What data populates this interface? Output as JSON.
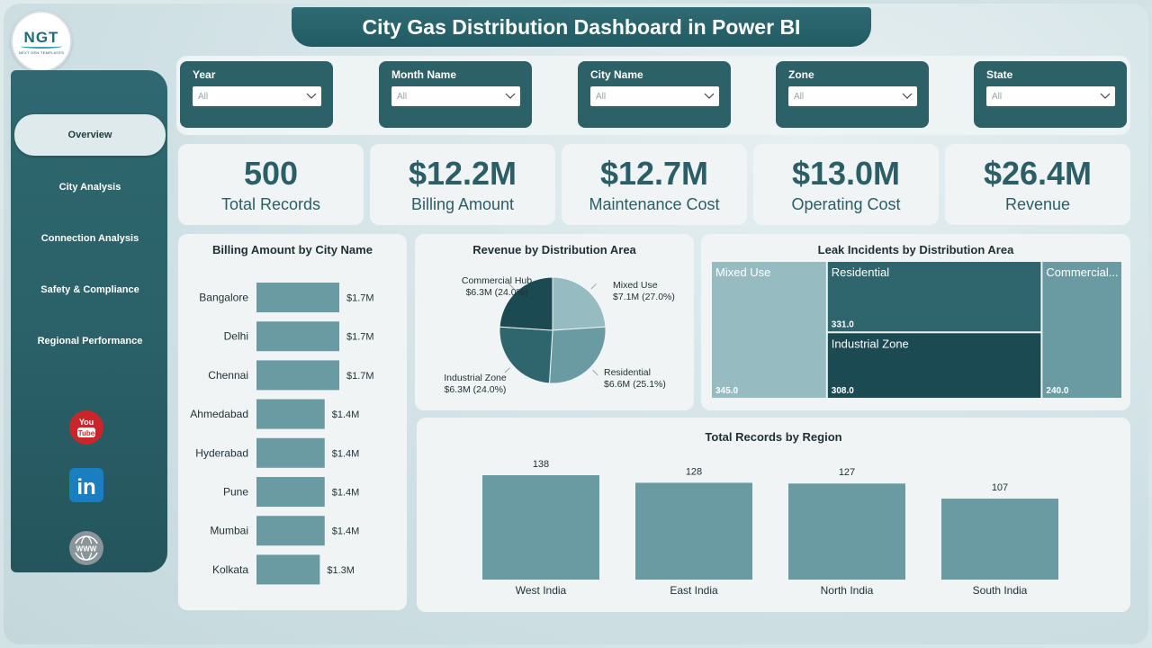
{
  "header": {
    "title": "City Gas Distribution Dashboard in Power BI"
  },
  "logo": {
    "mark": "NGT",
    "subtitle": "NEXT GEN TEMPLATES"
  },
  "sidebar": {
    "items": [
      {
        "label": "Overview",
        "active": true
      },
      {
        "label": "City Analysis"
      },
      {
        "label": "Connection Analysis"
      },
      {
        "label": "Safety & Compliance"
      },
      {
        "label": "Regional Performance"
      }
    ],
    "social": [
      {
        "icon": "youtube-icon",
        "text": "You Tube"
      },
      {
        "icon": "linkedin-icon",
        "text": "in"
      },
      {
        "icon": "www-icon",
        "text": "WWW"
      }
    ]
  },
  "filters": [
    {
      "label": "Year",
      "value": "All"
    },
    {
      "label": "Month Name",
      "value": "All"
    },
    {
      "label": "City Name",
      "value": "All"
    },
    {
      "label": "Zone",
      "value": "All"
    },
    {
      "label": "State",
      "value": "All"
    }
  ],
  "kpis": [
    {
      "value": "500",
      "label": "Total Records"
    },
    {
      "value": "$12.2M",
      "label": "Billing Amount"
    },
    {
      "value": "$12.7M",
      "label": "Maintenance Cost"
    },
    {
      "value": "$13.0M",
      "label": "Operating Cost"
    },
    {
      "value": "$26.4M",
      "label": "Revenue"
    }
  ],
  "colors": {
    "brand_dark": "#2d6168",
    "bar": "#6b9ba2",
    "pie": [
      "#96bcc2",
      "#6b9ba2",
      "#2f656c",
      "#1c4a52"
    ],
    "treemap": {
      "Mixed Use": "#96bcc2",
      "Residential": "#2f656c",
      "Industrial Zone": "#1c4a52",
      "Commercial Hub": "#6b9ba2"
    }
  },
  "chart_data": [
    {
      "type": "bar",
      "orientation": "horizontal",
      "title": "Billing Amount by City Name",
      "categories": [
        "Bangalore",
        "Delhi",
        "Chennai",
        "Ahmedabad",
        "Hyderabad",
        "Pune",
        "Mumbai",
        "Kolkata"
      ],
      "values": [
        1.7,
        1.7,
        1.7,
        1.4,
        1.4,
        1.4,
        1.4,
        1.3
      ],
      "data_labels": [
        "$1.7M",
        "$1.7M",
        "$1.7M",
        "$1.4M",
        "$1.4M",
        "$1.4M",
        "$1.4M",
        "$1.3M"
      ],
      "unit": "$M"
    },
    {
      "type": "pie",
      "title": "Revenue by Distribution Area",
      "slices": [
        {
          "name": "Commercial Hub",
          "value": 6.3,
          "pct": 24.0,
          "label": "$6.3M (24.0%)"
        },
        {
          "name": "Mixed Use",
          "value": 7.1,
          "pct": 27.0,
          "label": "$7.1M (27.0%)"
        },
        {
          "name": "Residential",
          "value": 6.6,
          "pct": 25.1,
          "label": "$6.6M (25.1%)"
        },
        {
          "name": "Industrial Zone",
          "value": 6.3,
          "pct": 24.0,
          "label": "$6.3M (24.0%)"
        }
      ]
    },
    {
      "type": "treemap",
      "title": "Leak Incidents by Distribution Area",
      "items": [
        {
          "name": "Mixed Use",
          "display_name": "Mixed Use",
          "value": 345.0,
          "label": "345.0"
        },
        {
          "name": "Residential",
          "display_name": "Residential",
          "value": 331.0,
          "label": "331.0"
        },
        {
          "name": "Industrial Zone",
          "display_name": "Industrial Zone",
          "value": 308.0,
          "label": "308.0"
        },
        {
          "name": "Commercial Hub",
          "display_name": "Commercial...",
          "value": 240.0,
          "label": "240.0"
        }
      ]
    },
    {
      "type": "bar",
      "orientation": "vertical",
      "title": "Total Records by Region",
      "categories": [
        "West India",
        "East India",
        "North India",
        "South India"
      ],
      "values": [
        138,
        128,
        127,
        107
      ],
      "data_labels": [
        "138",
        "128",
        "127",
        "107"
      ]
    }
  ]
}
